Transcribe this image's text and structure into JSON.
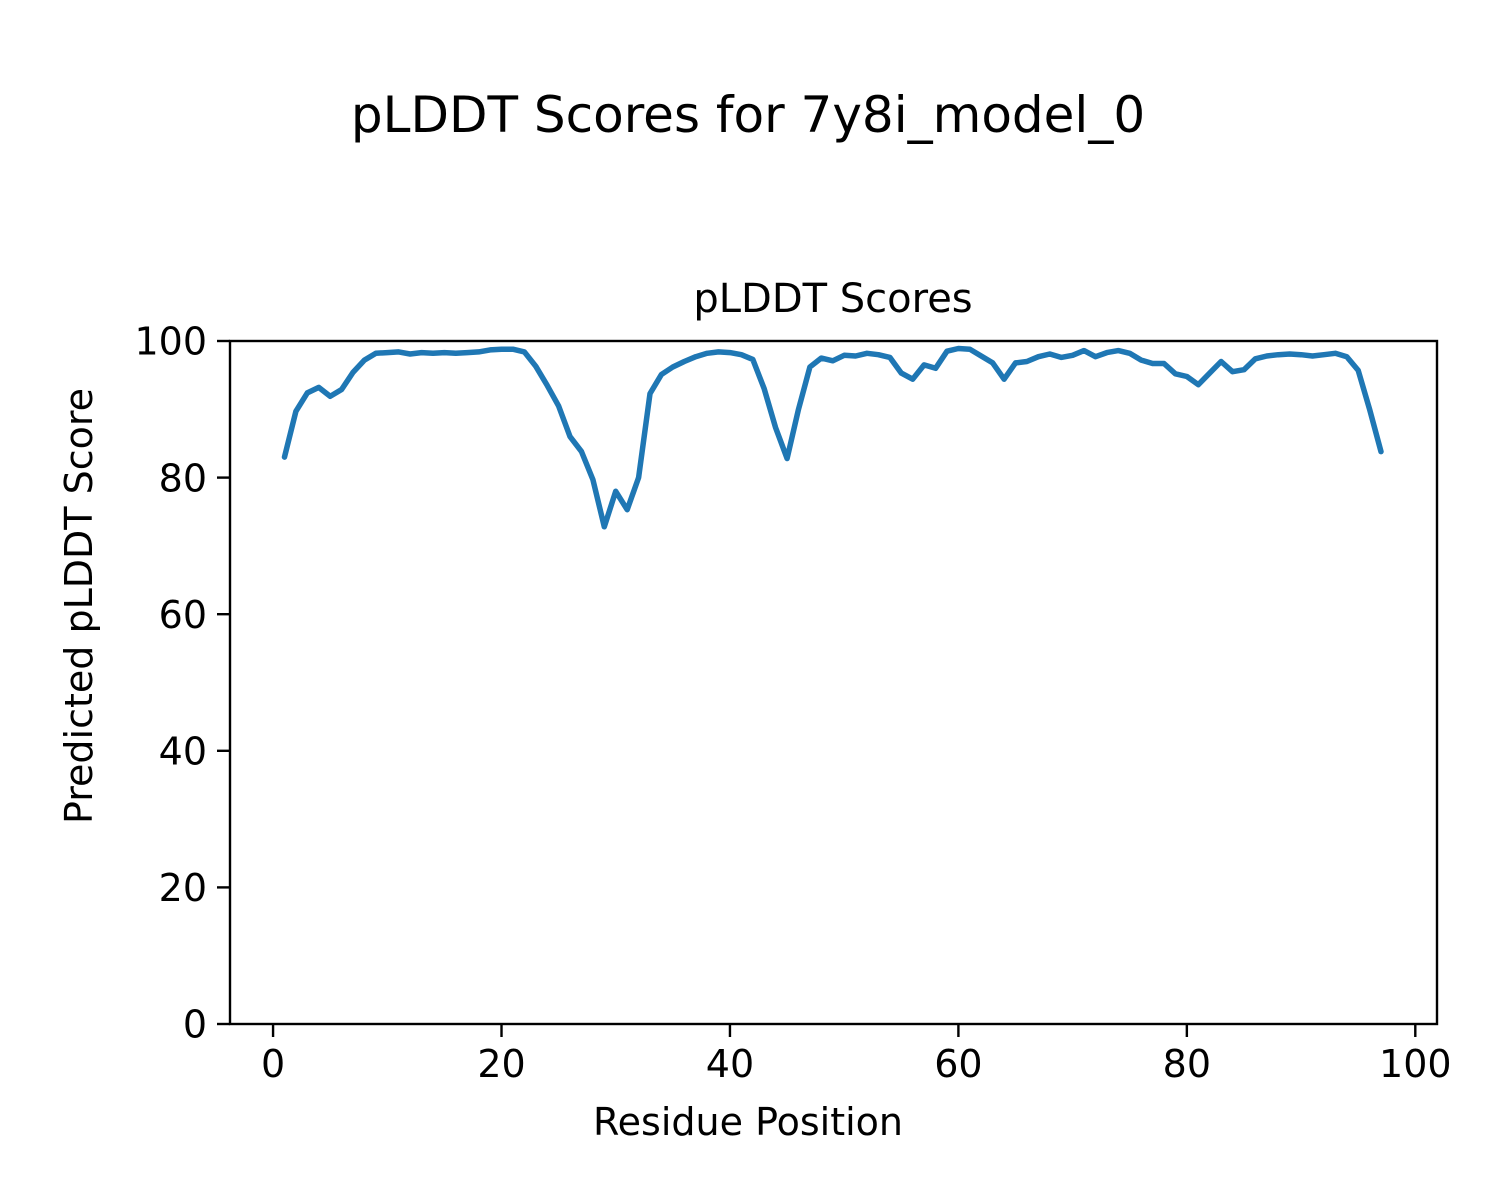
{
  "chart_data": {
    "type": "line",
    "suptitle": "pLDDT Scores for 7y8i_model_0",
    "title": "pLDDT Scores",
    "xlabel": "Residue Position",
    "ylabel": "Predicted pLDDT Score",
    "xlim": [
      -3.77,
      101.9
    ],
    "ylim": [
      0,
      100
    ],
    "x_ticks": [
      0,
      20,
      40,
      60,
      80,
      100
    ],
    "y_ticks": [
      0,
      20,
      40,
      60,
      80,
      100
    ],
    "grid": false,
    "legend": "none",
    "line_color": "#1f77b4",
    "axis_color": "#000000",
    "background_color": "#ffffff",
    "series_name": "pLDDT",
    "x": [
      1,
      2,
      3,
      4,
      5,
      6,
      7,
      8,
      9,
      10,
      11,
      12,
      13,
      14,
      15,
      16,
      17,
      18,
      19,
      20,
      21,
      22,
      23,
      24,
      25,
      26,
      27,
      28,
      29,
      30,
      31,
      32,
      33,
      34,
      35,
      36,
      37,
      38,
      39,
      40,
      41,
      42,
      43,
      44,
      45,
      46,
      47,
      48,
      49,
      50,
      51,
      52,
      53,
      54,
      55,
      56,
      57,
      58,
      59,
      60,
      61,
      62,
      63,
      64,
      65,
      66,
      67,
      68,
      69,
      70,
      71,
      72,
      73,
      74,
      75,
      76,
      77,
      78,
      79,
      80,
      81,
      82,
      83,
      84,
      85,
      86,
      87,
      88,
      89,
      90,
      91,
      92,
      93,
      94,
      95,
      96,
      97
    ],
    "y": [
      83.0,
      89.7,
      92.4,
      93.2,
      91.9,
      92.9,
      95.4,
      97.2,
      98.2,
      98.3,
      98.4,
      98.1,
      98.3,
      98.2,
      98.3,
      98.2,
      98.3,
      98.4,
      98.7,
      98.8,
      98.8,
      98.4,
      96.3,
      93.5,
      90.5,
      86.0,
      83.8,
      79.7,
      72.8,
      78.0,
      75.3,
      80.0,
      92.3,
      95.1,
      96.2,
      97.0,
      97.7,
      98.2,
      98.4,
      98.3,
      98.0,
      97.3,
      93.0,
      87.3,
      82.8,
      90.0,
      96.2,
      97.5,
      97.1,
      97.9,
      97.8,
      98.2,
      98.0,
      97.6,
      95.3,
      94.4,
      96.5,
      96.0,
      98.5,
      98.9,
      98.8,
      97.8,
      96.8,
      94.4,
      96.8,
      97.0,
      97.7,
      98.1,
      97.6,
      97.9,
      98.6,
      97.7,
      98.3,
      98.6,
      98.2,
      97.2,
      96.7,
      96.7,
      95.2,
      94.8,
      93.6,
      95.3,
      97.0,
      95.5,
      95.8,
      97.4,
      97.8,
      98.0,
      98.1,
      98.0,
      97.8,
      98.0,
      98.2,
      97.7,
      95.7,
      90.0,
      83.8
    ]
  }
}
